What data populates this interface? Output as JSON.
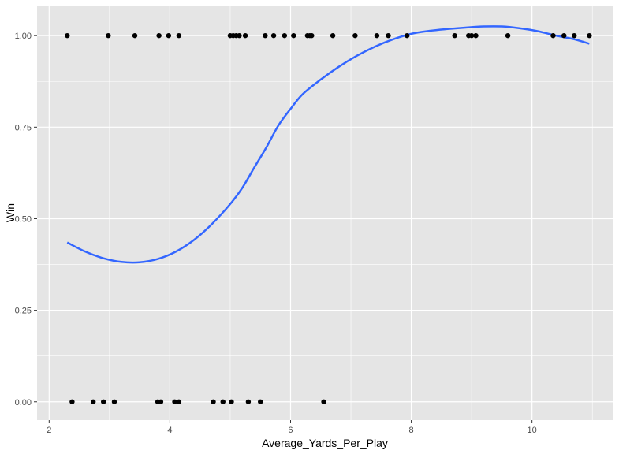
{
  "chart_data": {
    "type": "scatter",
    "xlabel": "Average_Yards_Per_Play",
    "ylabel": "Win",
    "xlim": [
      1.8,
      11.35
    ],
    "ylim": [
      -0.05,
      1.08
    ],
    "x_ticks": [
      2,
      4,
      6,
      8,
      10
    ],
    "x_minor_ticks": [
      3,
      5,
      7,
      9,
      11
    ],
    "y_ticks": [
      0,
      0.25,
      0.5,
      0.75,
      1
    ],
    "x_tick_labels": [
      "2",
      "4",
      "6",
      "8",
      "10"
    ],
    "y_tick_labels": [
      "0.00",
      "0.25",
      "0.50",
      "0.75",
      "1.00"
    ],
    "grid": true,
    "colors": {
      "panel_background": "#e5e5e5",
      "grid": "#ffffff",
      "points": "#000000",
      "smooth_line": "#3366ff",
      "tick_label": "#4d4d4d",
      "tick_mark": "#333333"
    },
    "points": [
      {
        "x": 2.3,
        "y": 1
      },
      {
        "x": 2.98,
        "y": 1
      },
      {
        "x": 3.42,
        "y": 1
      },
      {
        "x": 3.82,
        "y": 1
      },
      {
        "x": 3.98,
        "y": 1
      },
      {
        "x": 4.15,
        "y": 1
      },
      {
        "x": 5.0,
        "y": 1
      },
      {
        "x": 5.05,
        "y": 1
      },
      {
        "x": 5.1,
        "y": 1
      },
      {
        "x": 5.15,
        "y": 1
      },
      {
        "x": 5.25,
        "y": 1
      },
      {
        "x": 5.58,
        "y": 1
      },
      {
        "x": 5.72,
        "y": 1
      },
      {
        "x": 5.9,
        "y": 1
      },
      {
        "x": 6.05,
        "y": 1
      },
      {
        "x": 6.28,
        "y": 1
      },
      {
        "x": 6.32,
        "y": 1
      },
      {
        "x": 6.35,
        "y": 1
      },
      {
        "x": 6.7,
        "y": 1
      },
      {
        "x": 7.07,
        "y": 1
      },
      {
        "x": 7.43,
        "y": 1
      },
      {
        "x": 7.62,
        "y": 1
      },
      {
        "x": 7.93,
        "y": 1
      },
      {
        "x": 8.72,
        "y": 1
      },
      {
        "x": 8.95,
        "y": 1
      },
      {
        "x": 9.0,
        "y": 1
      },
      {
        "x": 9.07,
        "y": 1
      },
      {
        "x": 9.6,
        "y": 1
      },
      {
        "x": 10.35,
        "y": 1
      },
      {
        "x": 10.53,
        "y": 1
      },
      {
        "x": 10.7,
        "y": 1
      },
      {
        "x": 10.95,
        "y": 1
      },
      {
        "x": 2.38,
        "y": 0
      },
      {
        "x": 2.73,
        "y": 0
      },
      {
        "x": 2.9,
        "y": 0
      },
      {
        "x": 3.08,
        "y": 0
      },
      {
        "x": 3.8,
        "y": 0
      },
      {
        "x": 3.85,
        "y": 0
      },
      {
        "x": 4.08,
        "y": 0
      },
      {
        "x": 4.15,
        "y": 0
      },
      {
        "x": 4.72,
        "y": 0
      },
      {
        "x": 4.88,
        "y": 0
      },
      {
        "x": 5.02,
        "y": 0
      },
      {
        "x": 5.3,
        "y": 0
      },
      {
        "x": 5.5,
        "y": 0
      },
      {
        "x": 6.55,
        "y": 0
      }
    ],
    "smooth_line": {
      "x": [
        2.3,
        2.6,
        2.9,
        3.2,
        3.5,
        3.8,
        4.1,
        4.4,
        4.7,
        5.0,
        5.2,
        5.4,
        5.6,
        5.8,
        6.0,
        6.2,
        6.5,
        6.8,
        7.1,
        7.4,
        7.7,
        8.0,
        8.3,
        8.6,
        8.9,
        9.2,
        9.5,
        9.8,
        10.1,
        10.4,
        10.7,
        10.95
      ],
      "y": [
        0.435,
        0.41,
        0.392,
        0.382,
        0.381,
        0.39,
        0.41,
        0.442,
        0.486,
        0.54,
        0.584,
        0.64,
        0.695,
        0.755,
        0.8,
        0.84,
        0.88,
        0.915,
        0.945,
        0.97,
        0.99,
        1.005,
        1.013,
        1.018,
        1.022,
        1.025,
        1.025,
        1.02,
        1.012,
        1.0,
        0.99,
        0.978
      ]
    }
  }
}
